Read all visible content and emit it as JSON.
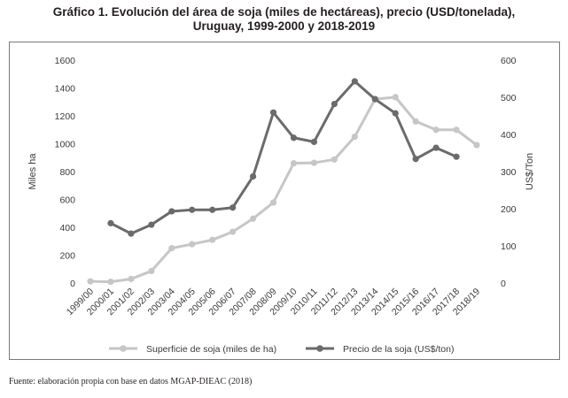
{
  "title_line1": "Gráfico 1. Evolución del área de soja (miles de hectáreas), precio (USD/tonelada),",
  "title_line2": "Uruguay, 1999-2000 y 2018-2019",
  "source": "Fuente: elaboración propia con base en datos MGAP-DIEAC (2018)",
  "chart_data": {
    "type": "line",
    "categories": [
      "1999/00",
      "2000/01",
      "2001/02",
      "2002/03",
      "2003/04",
      "2004/05",
      "2005/06",
      "2006/07",
      "2007/08",
      "2008/09",
      "2009/10",
      "2010/11",
      "2011/12",
      "2012/13",
      "2013/14",
      "2014/15",
      "2015/16",
      "2016/17",
      "2017/18",
      "2018/19"
    ],
    "ylabel_left": "Miles ha",
    "ylabel_right": "US$/Ton",
    "ylim_left": [
      0,
      1600
    ],
    "ylim_right": [
      0,
      600
    ],
    "yticks_left": [
      0,
      200,
      400,
      600,
      800,
      1000,
      1200,
      1400,
      1600
    ],
    "yticks_right": [
      0,
      100,
      200,
      300,
      400,
      500,
      600
    ],
    "grid": false,
    "legend_position": "bottom",
    "series": [
      {
        "name": "Superficie de soja (miles de ha)",
        "axis": "left",
        "color": "#c6c6c6",
        "values": [
          12,
          9,
          29,
          86,
          250,
          279,
          310,
          368,
          462,
          578,
          860,
          863,
          887,
          1050,
          1320,
          1334,
          1160,
          1100,
          1100,
          990
        ]
      },
      {
        "name": "Precio de la soja (US$/ton)",
        "axis": "right",
        "color": "#6b6b6b",
        "values": [
          null,
          161,
          133,
          157,
          193,
          197,
          197,
          203,
          287,
          459,
          391,
          380,
          482,
          543,
          495,
          457,
          334,
          364,
          340,
          null
        ]
      }
    ]
  }
}
